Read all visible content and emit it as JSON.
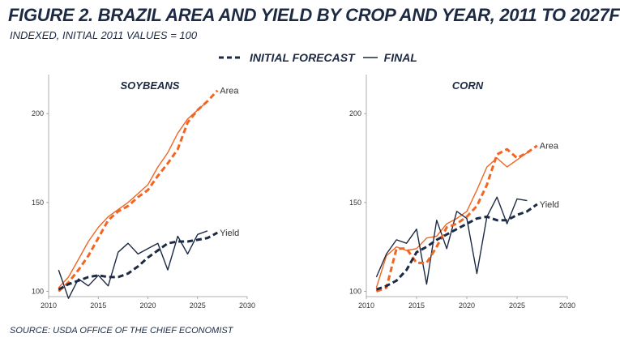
{
  "figure": {
    "title": "FIGURE 2. BRAZIL AREA AND YIELD BY CROP AND YEAR, 2011 TO 2027F",
    "subtitle": "INDEXED, INITIAL 2011 VALUES = 100",
    "source": "SOURCE: USDA OFFICE OF THE CHIEF ECONOMIST",
    "legend": {
      "forecast": "INITIAL FORECAST",
      "final": "FINAL"
    },
    "colors": {
      "area": "#f26522",
      "yield": "#1c2a44"
    }
  },
  "chart_data": [
    {
      "type": "line",
      "title": "SOYBEANS",
      "xlim": [
        2010,
        2030
      ],
      "ylim": [
        97,
        222
      ],
      "xticks": [
        2010,
        2015,
        2020,
        2025,
        2030
      ],
      "yticks": [
        100,
        150,
        200
      ],
      "series": [
        {
          "name": "Area",
          "style": "forecast",
          "color": "#f26522",
          "x": [
            2011,
            2012,
            2013,
            2014,
            2015,
            2016,
            2017,
            2018,
            2019,
            2020,
            2021,
            2022,
            2023,
            2024,
            2025,
            2026,
            2027
          ],
          "y": [
            100,
            105,
            112,
            120,
            130,
            140,
            145,
            148,
            153,
            157,
            165,
            172,
            180,
            195,
            202,
            207,
            213
          ]
        },
        {
          "name": "Area",
          "style": "final",
          "color": "#f26522",
          "x": [
            2011,
            2012,
            2013,
            2014,
            2015,
            2016,
            2017,
            2018,
            2019,
            2020,
            2021,
            2022,
            2023,
            2024,
            2025,
            2026
          ],
          "y": [
            102,
            108,
            118,
            128,
            136,
            142,
            146,
            150,
            155,
            160,
            170,
            178,
            189,
            197,
            202,
            207
          ]
        },
        {
          "name": "Yield",
          "style": "forecast",
          "color": "#1c2a44",
          "x": [
            2011,
            2012,
            2013,
            2014,
            2015,
            2016,
            2017,
            2018,
            2019,
            2020,
            2021,
            2022,
            2023,
            2024,
            2025,
            2026,
            2027
          ],
          "y": [
            101,
            104,
            106,
            108,
            109,
            108,
            108,
            110,
            114,
            119,
            123,
            127,
            128,
            128,
            129,
            130,
            133
          ]
        },
        {
          "name": "Yield",
          "style": "final",
          "color": "#1c2a44",
          "x": [
            2011,
            2012,
            2013,
            2014,
            2015,
            2016,
            2017,
            2018,
            2019,
            2020,
            2021,
            2022,
            2023,
            2024,
            2025,
            2026
          ],
          "y": [
            112,
            96,
            107,
            103,
            109,
            103,
            122,
            127,
            121,
            124,
            127,
            112,
            131,
            121,
            132,
            134
          ]
        }
      ]
    },
    {
      "type": "line",
      "title": "CORN",
      "xlim": [
        2010,
        2030
      ],
      "ylim": [
        97,
        222
      ],
      "xticks": [
        2010,
        2015,
        2020,
        2025,
        2030
      ],
      "yticks": [
        100,
        150,
        200
      ],
      "series": [
        {
          "name": "Area",
          "style": "forecast",
          "color": "#f26522",
          "x": [
            2011,
            2012,
            2013,
            2014,
            2015,
            2016,
            2017,
            2018,
            2019,
            2020,
            2021,
            2022,
            2023,
            2024,
            2025,
            2026,
            2027
          ],
          "y": [
            100,
            102,
            124,
            124,
            116,
            116,
            125,
            136,
            138,
            142,
            148,
            160,
            177,
            180,
            175,
            178,
            182
          ]
        },
        {
          "name": "Area",
          "style": "final",
          "color": "#f26522",
          "x": [
            2011,
            2012,
            2013,
            2014,
            2015,
            2016,
            2017,
            2018,
            2019,
            2020,
            2021,
            2022,
            2023,
            2024,
            2025,
            2026
          ],
          "y": [
            102,
            120,
            125,
            123,
            124,
            130,
            131,
            138,
            141,
            145,
            157,
            170,
            175,
            170,
            174,
            178
          ]
        },
        {
          "name": "Yield",
          "style": "forecast",
          "color": "#1c2a44",
          "x": [
            2011,
            2012,
            2013,
            2014,
            2015,
            2016,
            2017,
            2018,
            2019,
            2020,
            2021,
            2022,
            2023,
            2024,
            2025,
            2026,
            2027
          ],
          "y": [
            101,
            103,
            106,
            112,
            122,
            125,
            129,
            132,
            135,
            138,
            141,
            142,
            140,
            140,
            143,
            145,
            149
          ]
        },
        {
          "name": "Yield",
          "style": "final",
          "color": "#1c2a44",
          "x": [
            2011,
            2012,
            2013,
            2014,
            2015,
            2016,
            2017,
            2018,
            2019,
            2020,
            2021,
            2022,
            2023,
            2024,
            2025,
            2026
          ],
          "y": [
            108,
            121,
            129,
            127,
            135,
            104,
            140,
            124,
            145,
            141,
            110,
            142,
            153,
            138,
            152,
            151
          ]
        }
      ]
    }
  ]
}
